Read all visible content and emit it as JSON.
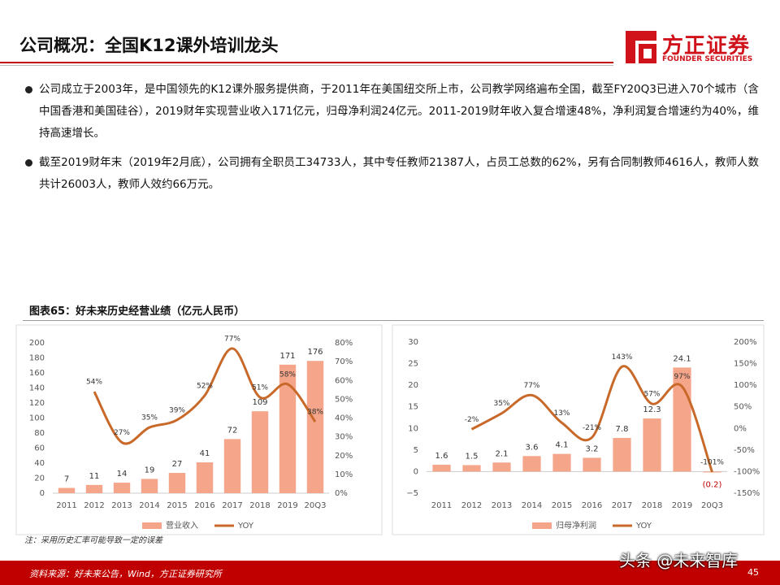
{
  "header": {
    "title": "公司概况：全国K12课外培训龙头",
    "logo_cn": "方正证券",
    "logo_en": "FOUNDER SECURITIES"
  },
  "bullets": [
    "公司成立于2003年，是中国领先的K12课外服务提供商，于2011年在美国纽交所上市，公司教学网络遍布全国，截至FY20Q3已进入70个城市（含中国香港和美国硅谷），2019财年实现营业收入171亿元，归母净利润24亿元。2011-2019财年收入复合增速48%，净利润复合增速约为40%，维持高速增长。",
    "截至2019财年末（2019年2月底），公司拥有全职员工34733人，其中专任教师21387人，占员工总数的62%，另有合同制教师4616人，教师人数共计26003人，教师人效约66万元。"
  ],
  "figure_title": "图表65：好未来历史经营业绩（亿元人民币）",
  "chart_data": [
    {
      "type": "bar",
      "categories": [
        "2011",
        "2012",
        "2013",
        "2014",
        "2015",
        "2016",
        "2017",
        "2018",
        "2019",
        "20Q3"
      ],
      "series": [
        {
          "name": "营业收入",
          "color": "#f4a58a",
          "values": [
            7,
            11,
            14,
            19,
            27,
            41,
            72,
            109,
            171,
            176
          ]
        },
        {
          "name": "YOY",
          "color": "#c8692a",
          "axis": "y2",
          "values": [
            null,
            54,
            27,
            35,
            39,
            52,
            77,
            51,
            58,
            38
          ],
          "value_labels": [
            null,
            "54%",
            "27%",
            "35%",
            "39%",
            "52%",
            "77%",
            "51%",
            "58%",
            "38%"
          ]
        }
      ],
      "ylim": [
        0,
        200
      ],
      "yticks": [
        0,
        20,
        40,
        60,
        80,
        100,
        120,
        140,
        160,
        180,
        200
      ],
      "y2lim": [
        0,
        80
      ],
      "y2ticks": [
        {
          "value": 0,
          "label": "0%"
        },
        {
          "value": 10,
          "label": "10%"
        },
        {
          "value": 20,
          "label": "20%"
        },
        {
          "value": 30,
          "label": "30%"
        },
        {
          "value": 40,
          "label": "40%"
        },
        {
          "value": 50,
          "label": "50%"
        },
        {
          "value": 60,
          "label": "60%"
        },
        {
          "value": 70,
          "label": "70%"
        },
        {
          "value": 80,
          "label": "80%"
        }
      ]
    },
    {
      "type": "bar",
      "categories": [
        "2011",
        "2012",
        "2013",
        "2014",
        "2015",
        "2016",
        "2017",
        "2018",
        "2019",
        "20Q3"
      ],
      "series": [
        {
          "name": "归母净利润",
          "color": "#f4a58a",
          "values": [
            1.6,
            1.5,
            2.1,
            3.6,
            4.1,
            3.2,
            7.8,
            12.3,
            24.1,
            -0.2
          ],
          "value_labels": [
            "1.6",
            "1.5",
            "2.1",
            "3.6",
            "4.1",
            "3.2",
            "7.8",
            "12.3",
            "24.1",
            "(0.2)"
          ]
        },
        {
          "name": "YOY",
          "color": "#c8692a",
          "axis": "y2",
          "values": [
            null,
            -2,
            35,
            77,
            13,
            -21,
            143,
            57,
            97,
            -101
          ],
          "value_labels": [
            null,
            "-2%",
            "35%",
            "77%",
            "13%",
            "-21%",
            "143%",
            "57%",
            "97%",
            "-101%"
          ]
        }
      ],
      "ylim": [
        -5,
        30
      ],
      "yticks": [
        {
          "value": -5,
          "label": "−5"
        },
        0,
        5,
        10,
        15,
        20,
        25,
        30
      ],
      "y2lim": [
        -150,
        200
      ],
      "y2ticks": [
        {
          "value": -150,
          "label": "-150%"
        },
        {
          "value": -100,
          "label": "-100%"
        },
        {
          "value": -50,
          "label": "-50%"
        },
        {
          "value": 0,
          "label": "0%"
        },
        {
          "value": 50,
          "label": "50%"
        },
        {
          "value": 100,
          "label": "100%"
        },
        {
          "value": 150,
          "label": "150%"
        },
        {
          "value": 200,
          "label": "200%"
        }
      ]
    }
  ],
  "note": "注：采用历史汇率可能导致一定的误差",
  "footer": {
    "source": "资料来源：好未来公告，Wind，方正证券研究所",
    "page": "45"
  },
  "watermark": "头条 @未来智库"
}
